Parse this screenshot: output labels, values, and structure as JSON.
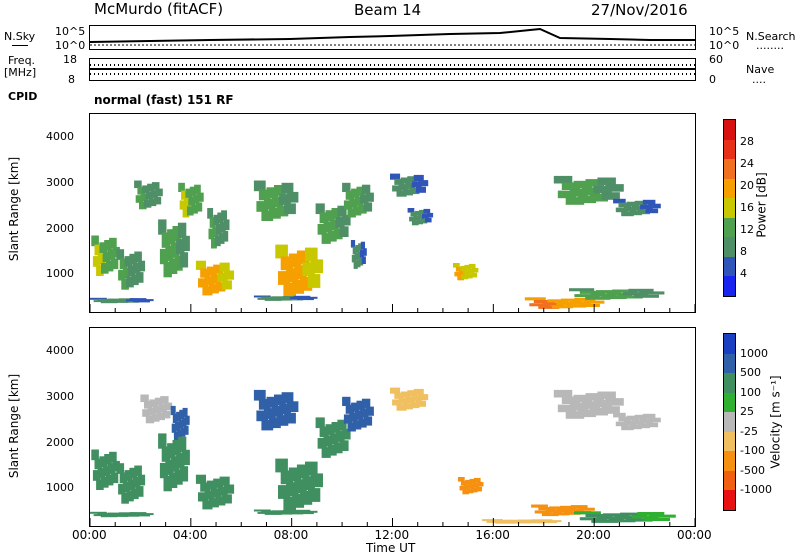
{
  "header": {
    "station": "McMurdo (fitACF)",
    "beam": "Beam 14",
    "date": "27/Nov/2016"
  },
  "sky_panel": {
    "left_label": "N.Sky",
    "right_label": "N.Search",
    "right_dots": "........",
    "left_ticks": [
      "10^5",
      "10^0"
    ],
    "right_ticks": [
      "10^5",
      "10^0"
    ]
  },
  "freq_panel": {
    "left_label_1": "Freq.",
    "left_label_2": "[MHz]",
    "right_label": "Nave",
    "right_dots": "....",
    "left_ticks": [
      "18",
      "8"
    ],
    "right_ticks": [
      "60",
      "0"
    ]
  },
  "cpid": {
    "label": "CPID",
    "text": "normal (fast) 151 RF"
  },
  "chart_data": [
    {
      "type": "heatmap",
      "title": "",
      "xlabel": "",
      "ylabel": "Slant Range [km]",
      "x_ticks": [
        "00:00",
        "04:00",
        "08:00",
        "12:00",
        "16:00",
        "20:00",
        "00:00"
      ],
      "y_ticks": [
        1000,
        2000,
        3000,
        4000
      ],
      "xlim": [
        0,
        24
      ],
      "ylim": [
        180,
        4500
      ],
      "colorbar": {
        "label": "Power [dB]",
        "ticks": [
          4,
          8,
          12,
          16,
          20,
          24,
          28
        ],
        "colors": [
          "#1a24f0",
          "#2f55b8",
          "#4f8f67",
          "#4fa04f",
          "#c8c800",
          "#f5a000",
          "#f07020",
          "#e83018",
          "#d81010"
        ]
      },
      "patches": [
        {
          "t": 0.5,
          "r": 1500,
          "w": 0.9,
          "h": 700,
          "v": 14
        },
        {
          "t": 1.5,
          "r": 1200,
          "w": 0.9,
          "h": 700,
          "v": 11
        },
        {
          "t": 2.2,
          "r": 2800,
          "w": 0.9,
          "h": 500,
          "v": 10
        },
        {
          "t": 3.2,
          "r": 1700,
          "w": 1.0,
          "h": 1000,
          "v": 13
        },
        {
          "t": 3.9,
          "r": 2700,
          "w": 0.8,
          "h": 600,
          "v": 15
        },
        {
          "t": 4.8,
          "r": 1000,
          "w": 1.2,
          "h": 600,
          "v": 20
        },
        {
          "t": 5.0,
          "r": 2100,
          "w": 0.7,
          "h": 700,
          "v": 10
        },
        {
          "t": 7.2,
          "r": 2700,
          "w": 1.4,
          "h": 700,
          "v": 12
        },
        {
          "t": 8.1,
          "r": 1200,
          "w": 1.5,
          "h": 900,
          "v": 20
        },
        {
          "t": 9.5,
          "r": 2200,
          "w": 1.1,
          "h": 700,
          "v": 12
        },
        {
          "t": 10.5,
          "r": 2700,
          "w": 1.0,
          "h": 600,
          "v": 13
        },
        {
          "t": 10.6,
          "r": 1500,
          "w": 0.5,
          "h": 500,
          "v": 9
        },
        {
          "t": 12.5,
          "r": 3000,
          "w": 1.2,
          "h": 400,
          "v": 9
        },
        {
          "t": 13.0,
          "r": 2300,
          "w": 0.8,
          "h": 300,
          "v": 9
        },
        {
          "t": 14.8,
          "r": 1100,
          "w": 0.8,
          "h": 300,
          "v": 18
        },
        {
          "t": 19.5,
          "r": 2900,
          "w": 2.2,
          "h": 500,
          "v": 12
        },
        {
          "t": 18.5,
          "r": 400,
          "w": 2.5,
          "h": 200,
          "v": 22
        },
        {
          "t": 20.5,
          "r": 600,
          "w": 3.0,
          "h": 200,
          "v": 13
        },
        {
          "t": 21.5,
          "r": 2500,
          "w": 1.5,
          "h": 300,
          "v": 8
        },
        {
          "t": 1.0,
          "r": 450,
          "w": 2.0,
          "h": 80,
          "v": 9
        },
        {
          "t": 7.5,
          "r": 500,
          "w": 2.0,
          "h": 80,
          "v": 9
        }
      ]
    },
    {
      "type": "heatmap",
      "title": "",
      "xlabel": "Time UT",
      "ylabel": "Slant Range [km]",
      "x_ticks": [
        "00:00",
        "04:00",
        "08:00",
        "12:00",
        "16:00",
        "20:00",
        "00:00"
      ],
      "y_ticks": [
        1000,
        2000,
        3000,
        4000
      ],
      "xlim": [
        0,
        24
      ],
      "ylim": [
        180,
        4500
      ],
      "colorbar": {
        "label": "Velocity [m s⁻¹]",
        "ticks": [
          "1000",
          "500",
          "100",
          "25",
          "-25",
          "-100",
          "-500",
          "-1000"
        ],
        "colors": [
          "#1a3fc0",
          "#3060a8",
          "#408f60",
          "#30b030",
          "#b8b8b8",
          "#f0c060",
          "#f59010",
          "#f06010",
          "#e81010"
        ]
      },
      "patches": [
        {
          "t": 0.5,
          "r": 1500,
          "w": 0.9,
          "h": 700,
          "v": 200
        },
        {
          "t": 1.5,
          "r": 1200,
          "w": 0.9,
          "h": 700,
          "v": 200
        },
        {
          "t": 2.5,
          "r": 2800,
          "w": 1.0,
          "h": 500,
          "v": 20
        },
        {
          "t": 3.5,
          "r": 2500,
          "w": 0.6,
          "h": 600,
          "v": 800
        },
        {
          "t": 3.2,
          "r": 1700,
          "w": 1.0,
          "h": 1000,
          "v": 200
        },
        {
          "t": 4.8,
          "r": 1000,
          "w": 1.2,
          "h": 600,
          "v": 200
        },
        {
          "t": 7.2,
          "r": 2800,
          "w": 1.4,
          "h": 700,
          "v": 800
        },
        {
          "t": 8.1,
          "r": 1200,
          "w": 1.5,
          "h": 900,
          "v": 200
        },
        {
          "t": 9.5,
          "r": 2200,
          "w": 1.1,
          "h": 700,
          "v": 200
        },
        {
          "t": 10.5,
          "r": 2700,
          "w": 1.0,
          "h": 600,
          "v": 800
        },
        {
          "t": 12.5,
          "r": 3000,
          "w": 1.2,
          "h": 400,
          "v": -50
        },
        {
          "t": 15.0,
          "r": 1100,
          "w": 0.8,
          "h": 300,
          "v": -300
        },
        {
          "t": 19.5,
          "r": 2900,
          "w": 2.2,
          "h": 500,
          "v": 0
        },
        {
          "t": 18.5,
          "r": 550,
          "w": 2.0,
          "h": 200,
          "v": -300
        },
        {
          "t": 20.8,
          "r": 400,
          "w": 3.2,
          "h": 200,
          "v": 150
        },
        {
          "t": 21.5,
          "r": 2500,
          "w": 1.5,
          "h": 300,
          "v": 0
        },
        {
          "t": 1.0,
          "r": 450,
          "w": 2.0,
          "h": 80,
          "v": 200
        },
        {
          "t": 7.5,
          "r": 500,
          "w": 2.0,
          "h": 80,
          "v": 200
        },
        {
          "t": 16.8,
          "r": 300,
          "w": 2.5,
          "h": 60,
          "v": -50
        }
      ]
    }
  ]
}
